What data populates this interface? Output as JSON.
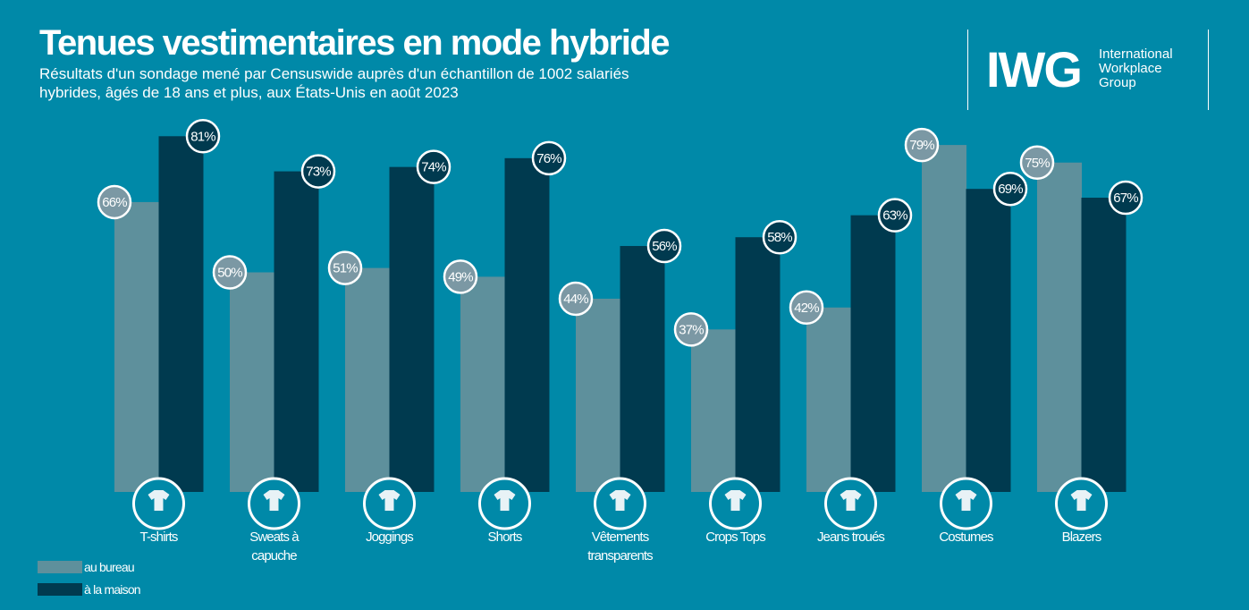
{
  "header": {
    "title": "Tenues vestimentaires en mode hybride",
    "subtitle": "Résultats d'un sondage mené par Censuswide auprès d'un échantillon de 1002 salariés hybrides, âgés de 18 ans et plus, aux États-Unis en août  2023"
  },
  "logo": {
    "mark": "IWG",
    "text": "International Workplace Group"
  },
  "colors": {
    "background": "#0089a8",
    "office": "#5e909c",
    "home": "#003a4f",
    "office_label": "#7b98a4"
  },
  "chart_data": {
    "type": "bar",
    "categories": [
      "T-shirts",
      "Sweats à capuche",
      "Joggings",
      "Shorts",
      "Vêtements transparents",
      "Crops Tops",
      "Jeans troués",
      "Costumes",
      "Blazers"
    ],
    "category_lines": [
      [
        "T-shirts"
      ],
      [
        "Sweats à",
        "capuche"
      ],
      [
        "Joggings"
      ],
      [
        "Shorts"
      ],
      [
        "Vêtements",
        "transparents"
      ],
      [
        "Crops Tops"
      ],
      [
        "Jeans troués"
      ],
      [
        "Costumes"
      ],
      [
        "Blazers"
      ]
    ],
    "icons": [
      "tshirt-icon",
      "hoodie-icon",
      "joggers-icon",
      "shorts-icon",
      "dress-icon",
      "crop-top-icon",
      "ripped-jeans-icon",
      "suit-icon",
      "blazer-icon"
    ],
    "series": [
      {
        "name": "au bureau",
        "values": [
          66,
          50,
          51,
          49,
          44,
          37,
          42,
          79,
          75
        ]
      },
      {
        "name": "à la maison",
        "values": [
          81,
          73,
          74,
          76,
          56,
          58,
          63,
          69,
          67
        ]
      }
    ],
    "value_suffix": "%",
    "ylim": [
      0,
      100
    ],
    "legend": "bottom-left",
    "grid": false
  }
}
